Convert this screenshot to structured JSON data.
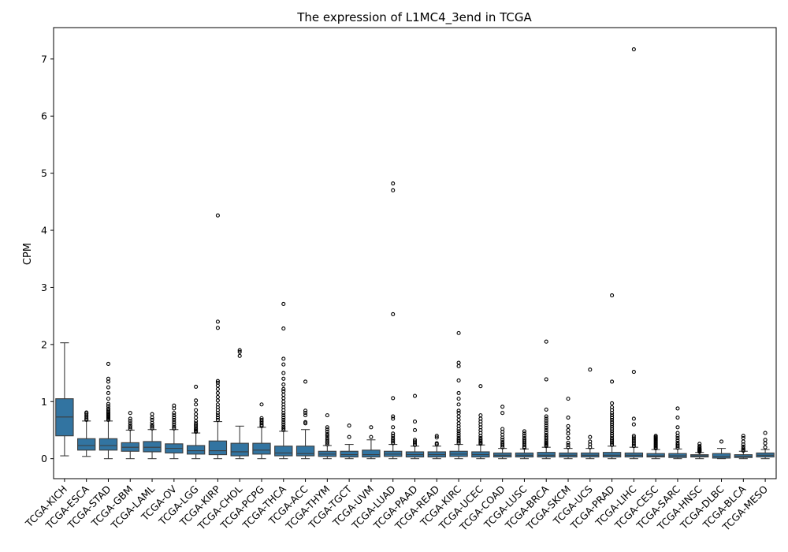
{
  "chart_data": {
    "type": "box",
    "title": "The expression of L1MC4_3end in TCGA",
    "xlabel": "",
    "ylabel": "CPM",
    "ylim": [
      -0.35,
      7.55
    ],
    "yticks": [
      0,
      1,
      2,
      3,
      4,
      5,
      6,
      7
    ],
    "grid": false,
    "legend": "none",
    "colors": {
      "box_fill": "#3274a1",
      "line": "#3c3c3c",
      "outlier": "#000000"
    },
    "categories": [
      "TCGA-KICH",
      "TCGA-ESCA",
      "TCGA-STAD",
      "TCGA-GBM",
      "TCGA-LAML",
      "TCGA-OV",
      "TCGA-LGG",
      "TCGA-KIRP",
      "TCGA-CHOL",
      "TCGA-PCPG",
      "TCGA-THCA",
      "TCGA-ACC",
      "TCGA-THYM",
      "TCGA-TGCT",
      "TCGA-UVM",
      "TCGA-LUAD",
      "TCGA-PAAD",
      "TCGA-READ",
      "TCGA-KIRC",
      "TCGA-UCEC",
      "TCGA-COAD",
      "TCGA-LUSC",
      "TCGA-BRCA",
      "TCGA-SKCM",
      "TCGA-UCS",
      "TCGA-PRAD",
      "TCGA-LIHC",
      "TCGA-CESC",
      "TCGA-SARC",
      "TCGA-HNSC",
      "TCGA-DLBC",
      "TCGA-BLCA",
      "TCGA-MESO"
    ],
    "boxes": [
      {
        "min": 0.05,
        "q1": 0.4,
        "median": 0.73,
        "q3": 1.05,
        "max": 2.03,
        "outliers": []
      },
      {
        "min": 0.04,
        "q1": 0.15,
        "median": 0.23,
        "q3": 0.35,
        "max": 0.66,
        "outliers": [
          0.68,
          0.7,
          0.73,
          0.76,
          0.79,
          0.81
        ]
      },
      {
        "min": 0.0,
        "q1": 0.15,
        "median": 0.23,
        "q3": 0.35,
        "max": 0.66,
        "outliers": [
          0.68,
          0.7,
          0.72,
          0.74,
          0.76,
          0.78,
          0.8,
          0.82,
          0.85,
          0.88,
          0.92,
          0.96,
          1.05,
          1.15,
          1.25,
          1.35,
          1.4,
          1.66
        ]
      },
      {
        "min": 0.0,
        "q1": 0.13,
        "median": 0.2,
        "q3": 0.28,
        "max": 0.5,
        "outliers": [
          0.52,
          0.55,
          0.58,
          0.62,
          0.66,
          0.7,
          0.8
        ]
      },
      {
        "min": 0.0,
        "q1": 0.12,
        "median": 0.2,
        "q3": 0.3,
        "max": 0.51,
        "outliers": [
          0.53,
          0.56,
          0.59,
          0.63,
          0.68,
          0.72,
          0.78
        ]
      },
      {
        "min": 0.0,
        "q1": 0.1,
        "median": 0.18,
        "q3": 0.26,
        "max": 0.51,
        "outliers": [
          0.53,
          0.56,
          0.6,
          0.64,
          0.68,
          0.72,
          0.76,
          0.8,
          0.88,
          0.93
        ]
      },
      {
        "min": 0.0,
        "q1": 0.08,
        "median": 0.14,
        "q3": 0.23,
        "max": 0.45,
        "outliers": [
          0.47,
          0.49,
          0.51,
          0.53,
          0.56,
          0.59,
          0.62,
          0.66,
          0.72,
          0.78,
          0.85,
          0.95,
          1.02,
          1.26
        ]
      },
      {
        "min": 0.0,
        "q1": 0.07,
        "median": 0.14,
        "q3": 0.31,
        "max": 0.65,
        "outliers": [
          0.68,
          0.72,
          0.76,
          0.8,
          0.85,
          0.9,
          0.95,
          1.02,
          1.08,
          1.15,
          1.22,
          1.28,
          1.33,
          1.36,
          2.29,
          2.4,
          4.26
        ]
      },
      {
        "min": 0.0,
        "q1": 0.05,
        "median": 0.12,
        "q3": 0.27,
        "max": 0.57,
        "outliers": [
          1.8,
          1.87,
          1.9
        ]
      },
      {
        "min": 0.0,
        "q1": 0.08,
        "median": 0.15,
        "q3": 0.27,
        "max": 0.55,
        "outliers": [
          0.57,
          0.59,
          0.62,
          0.65,
          0.68,
          0.71,
          0.95
        ]
      },
      {
        "min": 0.0,
        "q1": 0.05,
        "median": 0.1,
        "q3": 0.22,
        "max": 0.48,
        "outliers": [
          0.5,
          0.53,
          0.56,
          0.6,
          0.64,
          0.68,
          0.72,
          0.76,
          0.8,
          0.85,
          0.9,
          0.95,
          1.0,
          1.06,
          1.12,
          1.18,
          1.22,
          1.3,
          1.4,
          1.5,
          1.65,
          1.75,
          2.28,
          2.71
        ]
      },
      {
        "min": 0.0,
        "q1": 0.05,
        "median": 0.09,
        "q3": 0.22,
        "max": 0.51,
        "outliers": [
          0.62,
          0.64,
          0.76,
          0.8,
          0.84,
          1.35
        ]
      },
      {
        "min": 0.0,
        "q1": 0.04,
        "median": 0.08,
        "q3": 0.13,
        "max": 0.23,
        "outliers": [
          0.25,
          0.28,
          0.3,
          0.33,
          0.36,
          0.4,
          0.43,
          0.47,
          0.51,
          0.55,
          0.76
        ]
      },
      {
        "min": 0.0,
        "q1": 0.03,
        "median": 0.07,
        "q3": 0.13,
        "max": 0.25,
        "outliers": [
          0.38,
          0.58
        ]
      },
      {
        "min": 0.0,
        "q1": 0.03,
        "median": 0.07,
        "q3": 0.15,
        "max": 0.33,
        "outliers": [
          0.38,
          0.55
        ]
      },
      {
        "min": 0.0,
        "q1": 0.04,
        "median": 0.08,
        "q3": 0.13,
        "max": 0.25,
        "outliers": [
          0.27,
          0.3,
          0.33,
          0.36,
          0.4,
          0.44,
          0.55,
          0.7,
          0.74,
          1.06,
          2.53,
          4.7,
          4.82
        ]
      },
      {
        "min": 0.0,
        "q1": 0.03,
        "median": 0.07,
        "q3": 0.12,
        "max": 0.22,
        "outliers": [
          0.24,
          0.27,
          0.3,
          0.33,
          0.5,
          0.65,
          1.1
        ]
      },
      {
        "min": 0.0,
        "q1": 0.03,
        "median": 0.07,
        "q3": 0.12,
        "max": 0.22,
        "outliers": [
          0.25,
          0.27,
          0.37,
          0.4
        ]
      },
      {
        "min": 0.0,
        "q1": 0.04,
        "median": 0.08,
        "q3": 0.13,
        "max": 0.25,
        "outliers": [
          0.27,
          0.3,
          0.33,
          0.36,
          0.4,
          0.44,
          0.48,
          0.52,
          0.57,
          0.62,
          0.68,
          0.74,
          0.8,
          0.84,
          0.95,
          1.05,
          1.15,
          1.37,
          1.62,
          1.68,
          2.2
        ]
      },
      {
        "min": 0.0,
        "q1": 0.03,
        "median": 0.07,
        "q3": 0.12,
        "max": 0.24,
        "outliers": [
          0.26,
          0.28,
          0.3,
          0.33,
          0.36,
          0.4,
          0.45,
          0.5,
          0.55,
          0.6,
          0.65,
          0.7,
          0.76,
          1.27
        ]
      },
      {
        "min": 0.0,
        "q1": 0.03,
        "median": 0.06,
        "q3": 0.1,
        "max": 0.18,
        "outliers": [
          0.2,
          0.23,
          0.26,
          0.29,
          0.33,
          0.37,
          0.42,
          0.47,
          0.52,
          0.8,
          0.91
        ]
      },
      {
        "min": 0.0,
        "q1": 0.03,
        "median": 0.06,
        "q3": 0.1,
        "max": 0.17,
        "outliers": [
          0.19,
          0.21,
          0.24,
          0.27,
          0.3,
          0.33,
          0.36,
          0.4,
          0.44,
          0.48
        ]
      },
      {
        "min": 0.0,
        "q1": 0.03,
        "median": 0.06,
        "q3": 0.11,
        "max": 0.2,
        "outliers": [
          0.22,
          0.24,
          0.26,
          0.28,
          0.3,
          0.33,
          0.36,
          0.39,
          0.42,
          0.46,
          0.5,
          0.54,
          0.58,
          0.62,
          0.66,
          0.7,
          0.74,
          0.86,
          1.39,
          2.05
        ]
      },
      {
        "min": 0.0,
        "q1": 0.03,
        "median": 0.06,
        "q3": 0.1,
        "max": 0.18,
        "outliers": [
          0.2,
          0.24,
          0.28,
          0.36,
          0.44,
          0.5,
          0.57,
          0.72,
          1.05
        ]
      },
      {
        "min": 0.0,
        "q1": 0.03,
        "median": 0.06,
        "q3": 0.1,
        "max": 0.18,
        "outliers": [
          0.2,
          0.25,
          0.3,
          0.38,
          1.56
        ]
      },
      {
        "min": 0.0,
        "q1": 0.03,
        "median": 0.06,
        "q3": 0.11,
        "max": 0.22,
        "outliers": [
          0.24,
          0.27,
          0.3,
          0.33,
          0.36,
          0.4,
          0.44,
          0.48,
          0.52,
          0.56,
          0.6,
          0.64,
          0.68,
          0.72,
          0.76,
          0.8,
          0.85,
          0.9,
          0.97,
          1.35,
          2.86
        ]
      },
      {
        "min": 0.0,
        "q1": 0.03,
        "median": 0.06,
        "q3": 0.1,
        "max": 0.2,
        "outliers": [
          0.22,
          0.25,
          0.28,
          0.31,
          0.34,
          0.37,
          0.4,
          0.6,
          0.7,
          1.52,
          7.17
        ]
      },
      {
        "min": 0.0,
        "q1": 0.03,
        "median": 0.05,
        "q3": 0.09,
        "max": 0.16,
        "outliers": [
          0.18,
          0.2,
          0.22,
          0.24,
          0.26,
          0.28,
          0.3,
          0.32,
          0.34,
          0.36,
          0.38,
          0.4
        ]
      },
      {
        "min": 0.0,
        "q1": 0.02,
        "median": 0.05,
        "q3": 0.09,
        "max": 0.17,
        "outliers": [
          0.19,
          0.22,
          0.25,
          0.28,
          0.32,
          0.36,
          0.4,
          0.45,
          0.55,
          0.72,
          0.88
        ]
      },
      {
        "min": 0.0,
        "q1": 0.03,
        "median": 0.05,
        "q3": 0.07,
        "max": 0.11,
        "outliers": [
          0.12,
          0.13,
          0.14,
          0.15,
          0.16,
          0.17,
          0.18,
          0.2,
          0.22,
          0.26
        ]
      },
      {
        "min": 0.0,
        "q1": 0.01,
        "median": 0.04,
        "q3": 0.09,
        "max": 0.18,
        "outliers": [
          0.3
        ]
      },
      {
        "min": 0.0,
        "q1": 0.02,
        "median": 0.04,
        "q3": 0.07,
        "max": 0.13,
        "outliers": [
          0.14,
          0.16,
          0.18,
          0.21,
          0.25,
          0.3,
          0.36,
          0.4
        ]
      },
      {
        "min": 0.0,
        "q1": 0.03,
        "median": 0.06,
        "q3": 0.1,
        "max": 0.16,
        "outliers": [
          0.2,
          0.27,
          0.33,
          0.45
        ]
      }
    ]
  }
}
